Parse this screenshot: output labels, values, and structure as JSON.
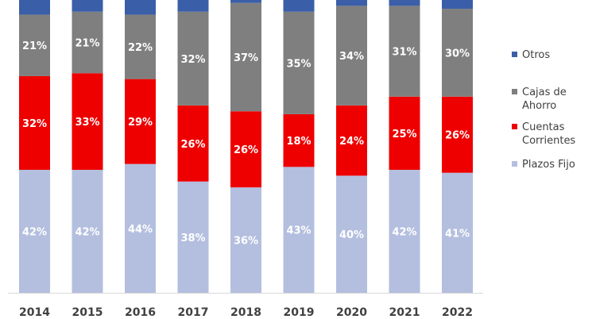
{
  "chart_data": {
    "type": "bar",
    "stacked": true,
    "percent": true,
    "categories": [
      "2014",
      "2015",
      "2016",
      "2017",
      "2018",
      "2019",
      "2020",
      "2021",
      "2022"
    ],
    "series": [
      {
        "name": "Plazos Fijo",
        "color": "#b4bfdf",
        "values": [
          42,
          42,
          44,
          38,
          36,
          43,
          40,
          42,
          41
        ],
        "labels": [
          "42%",
          "42%",
          "44%",
          "38%",
          "36%",
          "43%",
          "40%",
          "42%",
          "41%"
        ]
      },
      {
        "name": "Cuentas Corrientes",
        "color": "#ee0000",
        "values": [
          32,
          33,
          29,
          26,
          26,
          18,
          24,
          25,
          26
        ],
        "labels": [
          "32%",
          "33%",
          "29%",
          "26%",
          "26%",
          "18%",
          "24%",
          "25%",
          "26%"
        ]
      },
      {
        "name": "Cajas de Ahorro",
        "color": "#7f7f7f",
        "values": [
          21,
          21,
          22,
          32,
          37,
          35,
          34,
          31,
          30
        ],
        "labels": [
          "21%",
          "21%",
          "22%",
          "32%",
          "37%",
          "35%",
          "34%",
          "31%",
          "30%"
        ]
      },
      {
        "name": "Otros",
        "color": "#3a5fa8",
        "values": [
          5,
          4,
          5,
          4,
          1,
          4,
          2,
          2,
          3
        ],
        "labels": []
      }
    ],
    "legend": {
      "placement": "right",
      "items": [
        {
          "lines": [
            "Otros"
          ],
          "color": "#3a5fa8"
        },
        {
          "lines": [
            "Cajas de",
            "Ahorro"
          ],
          "color": "#7f7f7f"
        },
        {
          "lines": [
            "Cuentas",
            "Corrientes"
          ],
          "color": "#ee0000"
        },
        {
          "lines": [
            "Plazos Fijo"
          ],
          "color": "#b4bfdf"
        }
      ]
    }
  }
}
